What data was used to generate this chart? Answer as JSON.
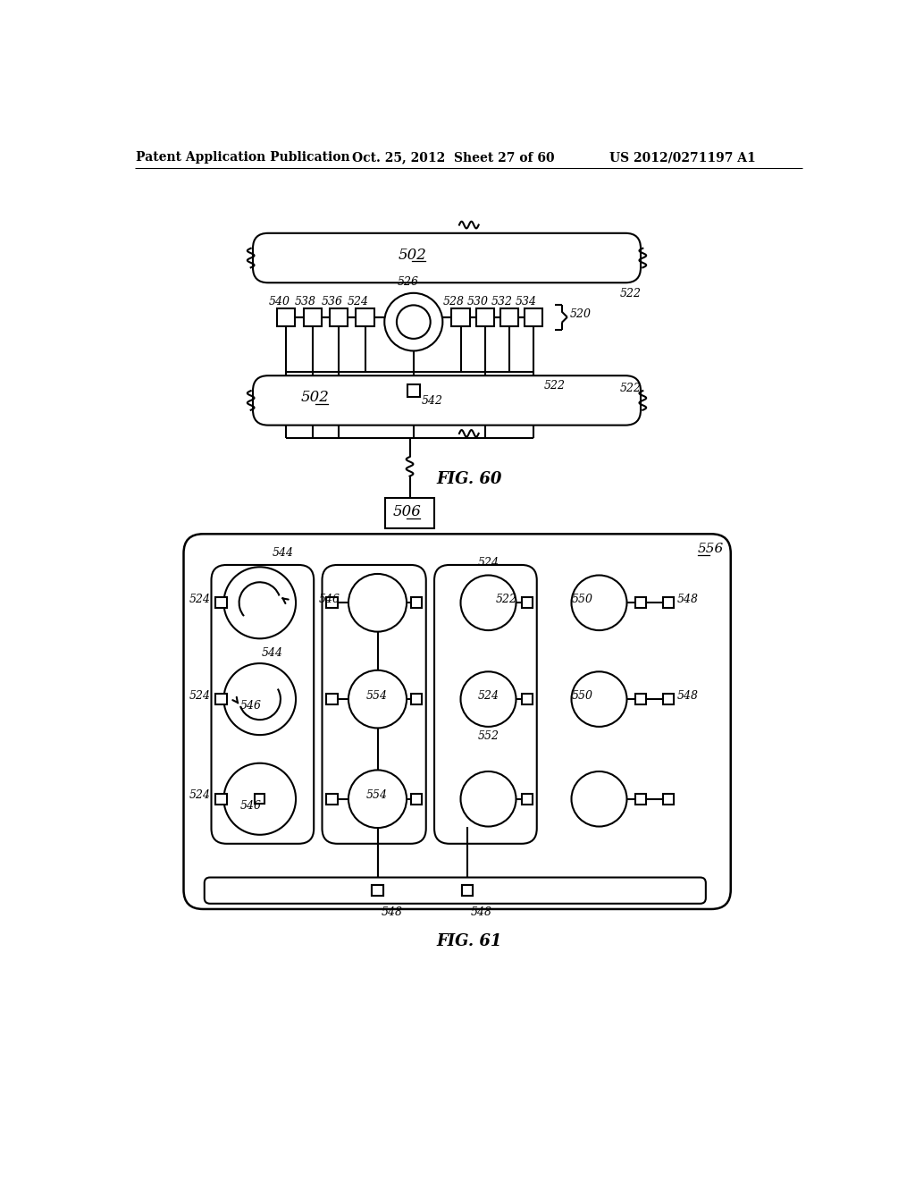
{
  "background_color": "#ffffff",
  "header_text": "Patent Application Publication",
  "header_date": "Oct. 25, 2012  Sheet 27 of 60",
  "header_patent": "US 2012/0271197 A1",
  "fig60_title": "FIG. 60",
  "fig61_title": "FIG. 61",
  "line_color": "#000000",
  "lw": 1.5
}
